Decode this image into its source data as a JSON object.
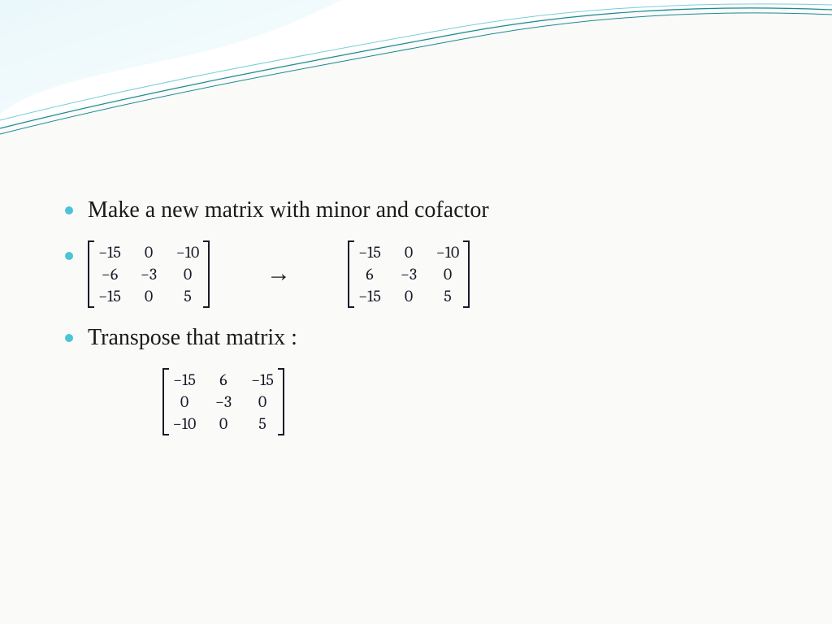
{
  "theme": {
    "bullet_color": "#49c5d6",
    "text_color": "#1a1a1a",
    "matrix_text_color": "#1a1a2a",
    "background_color": "#fafaf8",
    "wave_gradient_start": "#2eb5d0",
    "wave_gradient_end": "#b8e8f0",
    "wave_line_color": "#1a8a95",
    "body_fontsize": 28,
    "matrix_fontsize": 20
  },
  "bullets": {
    "b1": "Make a new matrix with minor and cofactor",
    "b3": "Transpose that matrix :"
  },
  "arrow_symbol": "→",
  "matrices": {
    "minor": {
      "rows": 3,
      "cols": 3,
      "cells": [
        "−15",
        "0",
        "−10",
        "−6",
        "−3",
        "0",
        "−15",
        "0",
        "5"
      ]
    },
    "cofactor": {
      "rows": 3,
      "cols": 3,
      "cells": [
        "−15",
        "0",
        "−10",
        "6",
        "−3",
        "0",
        "−15",
        "0",
        "5"
      ]
    },
    "transpose": {
      "rows": 3,
      "cols": 3,
      "cells": [
        "−15",
        "6",
        "−15",
        "0",
        "−3",
        "0",
        "−10",
        "0",
        "5"
      ]
    }
  }
}
